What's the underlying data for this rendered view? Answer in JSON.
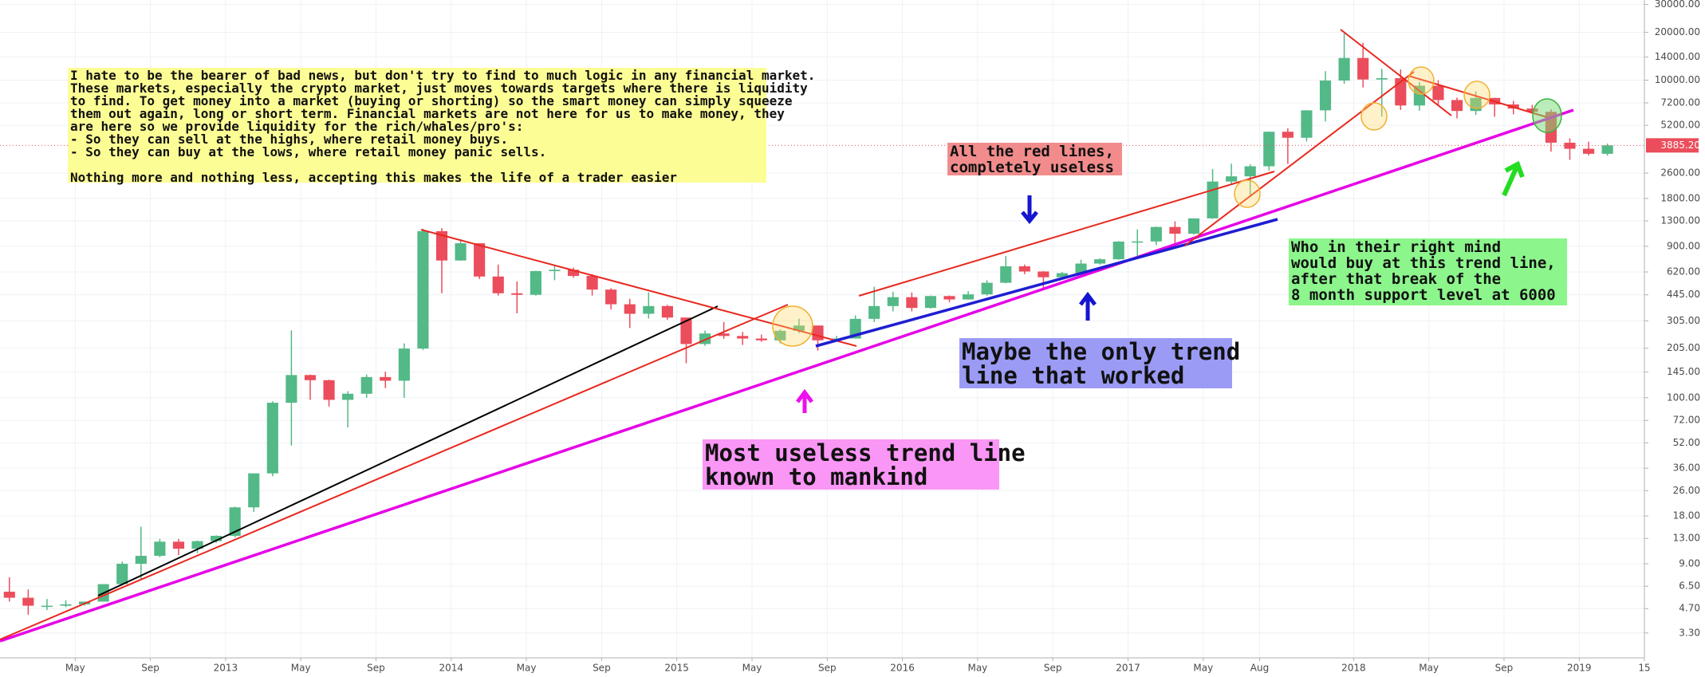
{
  "chart_data": {
    "type": "candlestick",
    "log_scale": true,
    "grid": true,
    "up_color": "#53b987",
    "down_color": "#eb4d5c",
    "ylim": [
      2.3,
      32000
    ],
    "yticks": [
      {
        "value": 30000,
        "label": "30000.00"
      },
      {
        "value": 20000,
        "label": "20000.00"
      },
      {
        "value": 14000,
        "label": "14000.00"
      },
      {
        "value": 10000,
        "label": "10000.00"
      },
      {
        "value": 7200,
        "label": "7200.00"
      },
      {
        "value": 5200,
        "label": "5200.00"
      },
      {
        "value": 2600,
        "label": "2600.00"
      },
      {
        "value": 1800,
        "label": "1800.00"
      },
      {
        "value": 1300,
        "label": "1300.00"
      },
      {
        "value": 900,
        "label": "900.00"
      },
      {
        "value": 620,
        "label": "620.00"
      },
      {
        "value": 445,
        "label": "445.00"
      },
      {
        "value": 305,
        "label": "305.00"
      },
      {
        "value": 205,
        "label": "205.00"
      },
      {
        "value": 145,
        "label": "145.00"
      },
      {
        "value": 100,
        "label": "100.00"
      },
      {
        "value": 72,
        "label": "72.00"
      },
      {
        "value": 52,
        "label": "52.00"
      },
      {
        "value": 36,
        "label": "36.00"
      },
      {
        "value": 26,
        "label": "26.00"
      },
      {
        "value": 18,
        "label": "18.00"
      },
      {
        "value": 13,
        "label": "13.00"
      },
      {
        "value": 9,
        "label": "9.00"
      },
      {
        "value": 6.5,
        "label": "6.50"
      },
      {
        "value": 4.7,
        "label": "4.70"
      },
      {
        "value": 3.3,
        "label": "3.30"
      }
    ],
    "last_price": {
      "value": 3885.2,
      "label": "3885.20"
    },
    "xlim": [
      "2012-01",
      "2019-04-15"
    ],
    "xticks": [
      {
        "value": "2012-05",
        "label": "May"
      },
      {
        "value": "2012-09",
        "label": "Sep"
      },
      {
        "value": "2013-01",
        "label": "2013"
      },
      {
        "value": "2013-05",
        "label": "May"
      },
      {
        "value": "2013-09",
        "label": "Sep"
      },
      {
        "value": "2014-01",
        "label": "2014"
      },
      {
        "value": "2014-05",
        "label": "May"
      },
      {
        "value": "2014-09",
        "label": "Sep"
      },
      {
        "value": "2015-01",
        "label": "2015"
      },
      {
        "value": "2015-05",
        "label": "May"
      },
      {
        "value": "2015-09",
        "label": "Sep"
      },
      {
        "value": "2016-01",
        "label": "2016"
      },
      {
        "value": "2016-05",
        "label": "May"
      },
      {
        "value": "2016-09",
        "label": "Sep"
      },
      {
        "value": "2017-01",
        "label": "2017"
      },
      {
        "value": "2017-05",
        "label": "May"
      },
      {
        "value": "2017-08",
        "label": "Aug"
      },
      {
        "value": "2018-01",
        "label": "2018"
      },
      {
        "value": "2018-05",
        "label": "May"
      },
      {
        "value": "2018-09",
        "label": "Sep"
      },
      {
        "value": "2019-01",
        "label": "2019"
      },
      {
        "value": "2019-04-15",
        "label": "15"
      }
    ],
    "x": [
      "2012-01",
      "2012-02",
      "2012-03",
      "2012-04",
      "2012-05",
      "2012-06",
      "2012-07",
      "2012-08",
      "2012-09",
      "2012-10",
      "2012-11",
      "2012-12",
      "2013-01",
      "2013-02",
      "2013-03",
      "2013-04",
      "2013-05",
      "2013-06",
      "2013-07",
      "2013-08",
      "2013-09",
      "2013-10",
      "2013-11",
      "2013-12",
      "2014-01",
      "2014-02",
      "2014-03",
      "2014-04",
      "2014-05",
      "2014-06",
      "2014-07",
      "2014-08",
      "2014-09",
      "2014-10",
      "2014-11",
      "2014-12",
      "2015-01",
      "2015-02",
      "2015-03",
      "2015-04",
      "2015-05",
      "2015-06",
      "2015-07",
      "2015-08",
      "2015-09",
      "2015-10",
      "2015-11",
      "2015-12",
      "2016-01",
      "2016-02",
      "2016-03",
      "2016-04",
      "2016-05",
      "2016-06",
      "2016-07",
      "2016-08",
      "2016-09",
      "2016-10",
      "2016-11",
      "2016-12",
      "2017-01",
      "2017-02",
      "2017-03",
      "2017-04",
      "2017-05",
      "2017-06",
      "2017-07",
      "2017-08",
      "2017-09",
      "2017-10",
      "2017-11",
      "2017-12",
      "2018-01",
      "2018-02",
      "2018-03",
      "2018-04",
      "2018-05",
      "2018-06",
      "2018-07",
      "2018-08",
      "2018-09",
      "2018-10",
      "2018-11",
      "2018-12",
      "2019-01",
      "2019-02"
    ],
    "open": [
      6.0,
      5.5,
      4.9,
      4.9,
      5.0,
      5.2,
      6.7,
      9.0,
      10.1,
      12.4,
      11.2,
      12.5,
      13.5,
      20.4,
      33.4,
      93,
      139,
      129,
      97,
      106,
      135,
      128,
      204,
      1120,
      732,
      940,
      580,
      455,
      445,
      628,
      640,
      585,
      480,
      388,
      338,
      378,
      320,
      218,
      254,
      245,
      236,
      230,
      264,
      285,
      230,
      236,
      314,
      378,
      430,
      368,
      437,
      416,
      448,
      530,
      673,
      624,
      574,
      609,
      700,
      745,
      963,
      965,
      1190,
      1080,
      1348,
      2300,
      2480,
      2870,
      4735,
      4340,
      6460,
      9950,
      13800,
      10100,
      10300,
      6930,
      9240,
      7500,
      6400,
      7730,
      7040,
      6630,
      6320,
      4040,
      3700,
      3440
    ],
    "high": [
      7.4,
      6.2,
      5.4,
      5.3,
      5.2,
      6.7,
      9.3,
      15.4,
      12.9,
      12.9,
      12.6,
      13.6,
      20.6,
      33.4,
      95,
      266,
      140,
      130,
      110,
      140,
      146,
      220,
      1160,
      1170,
      1000,
      940,
      690,
      540,
      630,
      680,
      660,
      600,
      490,
      420,
      460,
      385,
      320,
      265,
      300,
      260,
      250,
      270,
      315,
      285,
      245,
      330,
      500,
      465,
      460,
      440,
      440,
      470,
      550,
      780,
      690,
      628,
      620,
      740,
      755,
      970,
      1150,
      1200,
      1290,
      1350,
      2760,
      2980,
      2950,
      4750,
      4980,
      6470,
      11400,
      19700,
      17200,
      11800,
      11700,
      9750,
      10000,
      7770,
      8500,
      7760,
      7410,
      7000,
      6550,
      4300,
      4100,
      3990
    ],
    "low": [
      5.2,
      4.3,
      4.6,
      4.8,
      4.9,
      5.2,
      6.6,
      7.1,
      9.9,
      10.2,
      10.5,
      12.2,
      13.2,
      19.1,
      32,
      50,
      97,
      88,
      65,
      100,
      115,
      100,
      200,
      455,
      730,
      560,
      440,
      340,
      440,
      550,
      570,
      440,
      360,
      275,
      315,
      310,
      165,
      212,
      235,
      215,
      225,
      220,
      255,
      198,
      225,
      236,
      300,
      350,
      350,
      365,
      400,
      415,
      440,
      525,
      600,
      480,
      570,
      605,
      690,
      740,
      755,
      915,
      890,
      1065,
      1340,
      2200,
      1850,
      2700,
      2970,
      4110,
      5500,
      9500,
      9000,
      5900,
      6500,
      6430,
      7000,
      5750,
      6050,
      5880,
      6100,
      6200,
      3550,
      3150,
      3360,
      3350
    ],
    "close": [
      5.5,
      4.9,
      4.9,
      5.0,
      5.2,
      6.7,
      9.0,
      10.1,
      12.4,
      11.2,
      12.5,
      13.5,
      20.4,
      33.4,
      93,
      139,
      129,
      97,
      106,
      135,
      128,
      204,
      1120,
      732,
      940,
      580,
      455,
      445,
      628,
      640,
      585,
      480,
      388,
      338,
      378,
      320,
      218,
      254,
      245,
      236,
      230,
      264,
      285,
      230,
      236,
      314,
      378,
      430,
      368,
      437,
      416,
      448,
      530,
      673,
      624,
      574,
      609,
      700,
      745,
      963,
      965,
      1190,
      1080,
      1348,
      2300,
      2480,
      2870,
      4735,
      4340,
      6460,
      9950,
      13800,
      10100,
      10300,
      6930,
      9240,
      7500,
      6400,
      7730,
      7040,
      6630,
      6320,
      4040,
      3700,
      3440,
      3885.2
    ],
    "notes": {
      "intro": [
        "I hate to be the bearer of bad news, but don't try to find to much logic in any financial market.",
        "These markets, especially the crypto market, just moves towards targets where there is liquidity",
        "to find. To get money into a market (buying or shorting) so the smart money can simply squeeze",
        "them out again, long or short term. Financial markets are not here for us to make money, they",
        "are here so we provide liquidity for the rich/whales/pro's:",
        "- So they can sell at the highs, where retail money buys.",
        "- So they can buy at the lows, where retail money panic sells.",
        "Nothing more and nothing less, accepting this makes the life of a trader easier"
      ],
      "red_lines": [
        "All the red lines,",
        "completely useless"
      ],
      "blue_line": [
        "Maybe the only trend",
        "line that worked"
      ],
      "pink_line": [
        "Most useless trend line",
        "known to mankind"
      ],
      "green_note": [
        "Who in their right mind",
        "would buy at this trend line,",
        "after that break of the",
        "8 month support level at 6000"
      ]
    }
  }
}
